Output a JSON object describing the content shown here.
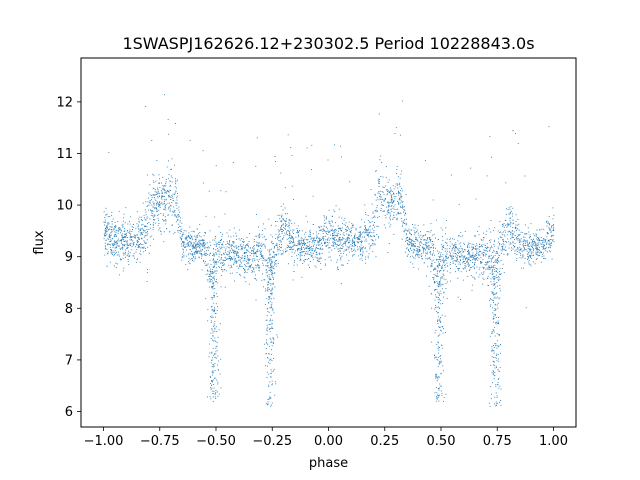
{
  "chart_data": {
    "type": "scatter",
    "title": "1SWASPJ162626.12+230302.5 Period 10228843.0s",
    "xlabel": "phase",
    "ylabel": "flux",
    "xlim": [
      -1.1,
      1.1
    ],
    "ylim": [
      5.7,
      12.85
    ],
    "x_ticks": [
      -1.0,
      -0.75,
      -0.5,
      -0.25,
      0.0,
      0.25,
      0.5,
      0.75,
      1.0
    ],
    "x_tick_labels": [
      "−1.00",
      "−0.75",
      "−0.50",
      "−0.25",
      "0.00",
      "0.25",
      "0.50",
      "0.75",
      "1.00"
    ],
    "y_ticks": [
      6,
      7,
      8,
      9,
      10,
      11,
      12
    ],
    "y_tick_labels": [
      "6",
      "7",
      "8",
      "9",
      "10",
      "11",
      "12"
    ],
    "grid": false,
    "legend": "none",
    "marker_color": "#1f77b4",
    "series": [
      {
        "x_range": [
          -1.0,
          1.0
        ],
        "x": [
          -1.0,
          -0.95,
          -0.9,
          -0.85,
          -0.8,
          -0.77,
          -0.75,
          -0.72,
          -0.7,
          -0.68,
          -0.65,
          -0.6,
          -0.55,
          -0.52,
          -0.5,
          -0.45,
          -0.4,
          -0.35,
          -0.3,
          -0.27,
          -0.25,
          -0.22,
          -0.2,
          -0.15,
          -0.1,
          -0.05,
          0.0,
          0.05,
          0.1,
          0.15,
          0.2,
          0.23,
          0.25,
          0.28,
          0.3,
          0.32,
          0.35,
          0.4,
          0.45,
          0.48,
          0.5,
          0.55,
          0.6,
          0.65,
          0.7,
          0.73,
          0.75,
          0.78,
          0.8,
          0.85,
          0.9,
          0.95,
          1.0
        ],
        "y": [
          9.5,
          9.3,
          9.3,
          9.3,
          9.6,
          10.2,
          10.1,
          10.1,
          10.2,
          10.1,
          9.3,
          9.2,
          9.2,
          8.6,
          9.0,
          9.1,
          9.0,
          9.0,
          9.1,
          8.5,
          9.0,
          9.4,
          9.6,
          9.2,
          9.2,
          9.2,
          9.5,
          9.3,
          9.3,
          9.3,
          9.6,
          10.2,
          10.1,
          10.1,
          10.2,
          10.1,
          9.3,
          9.2,
          9.2,
          8.6,
          9.0,
          9.1,
          9.0,
          9.0,
          9.1,
          8.5,
          9.0,
          9.4,
          9.6,
          9.2,
          9.2,
          9.2,
          9.5
        ],
        "spread": [
          0.45,
          0.4,
          0.35,
          0.35,
          0.6,
          0.55,
          0.55,
          0.55,
          0.55,
          0.5,
          0.3,
          0.3,
          0.3,
          0.9,
          0.45,
          0.35,
          0.35,
          0.4,
          0.45,
          0.9,
          0.5,
          0.4,
          0.45,
          0.3,
          0.3,
          0.3,
          0.45,
          0.4,
          0.35,
          0.35,
          0.6,
          0.55,
          0.55,
          0.55,
          0.55,
          0.5,
          0.3,
          0.3,
          0.3,
          0.9,
          0.45,
          0.35,
          0.35,
          0.4,
          0.45,
          0.9,
          0.5,
          0.4,
          0.45,
          0.3,
          0.3,
          0.3,
          0.45
        ],
        "dips": [
          {
            "x": -0.51,
            "min": 6.2
          },
          {
            "x": -0.26,
            "min": 6.1
          },
          {
            "x": 0.49,
            "min": 6.2
          },
          {
            "x": 0.74,
            "min": 6.1
          }
        ]
      }
    ]
  }
}
